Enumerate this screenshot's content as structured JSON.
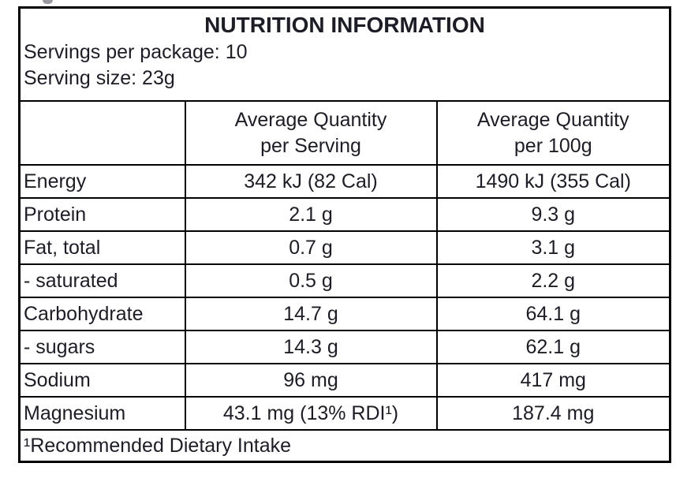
{
  "table": {
    "title": "NUTRITION INFORMATION",
    "servings_per_package": "Servings per package: 10",
    "serving_size": "Serving size: 23g",
    "columns": {
      "per_serving": {
        "line1": "Average Quantity",
        "line2": "per Serving"
      },
      "per_100g": {
        "line1": "Average Quantity",
        "line2": "per 100g"
      }
    },
    "rows": [
      {
        "name": "Energy",
        "per_serving": "342 kJ (82 Cal)",
        "per_100g": "1490 kJ (355 Cal)"
      },
      {
        "name": "Protein",
        "per_serving": "2.1 g",
        "per_100g": "9.3 g"
      },
      {
        "name": "Fat, total",
        "per_serving": "0.7 g",
        "per_100g": "3.1 g"
      },
      {
        "name": "- saturated",
        "per_serving": "0.5 g",
        "per_100g": "2.2 g"
      },
      {
        "name": "Carbohydrate",
        "per_serving": "14.7 g",
        "per_100g": "64.1 g"
      },
      {
        "name": "- sugars",
        "per_serving": "14.3 g",
        "per_100g": "62.1 g"
      },
      {
        "name": "Sodium",
        "per_serving": "96 mg",
        "per_100g": "417 mg"
      },
      {
        "name": "Magnesium",
        "per_serving": "43.1 mg (13% RDI¹)",
        "per_100g": "187.4 mg"
      }
    ],
    "footnote": "¹Recommended Dietary Intake"
  },
  "colors": {
    "border": "#000000",
    "text": "#1d1d27",
    "background": "#ffffff"
  }
}
